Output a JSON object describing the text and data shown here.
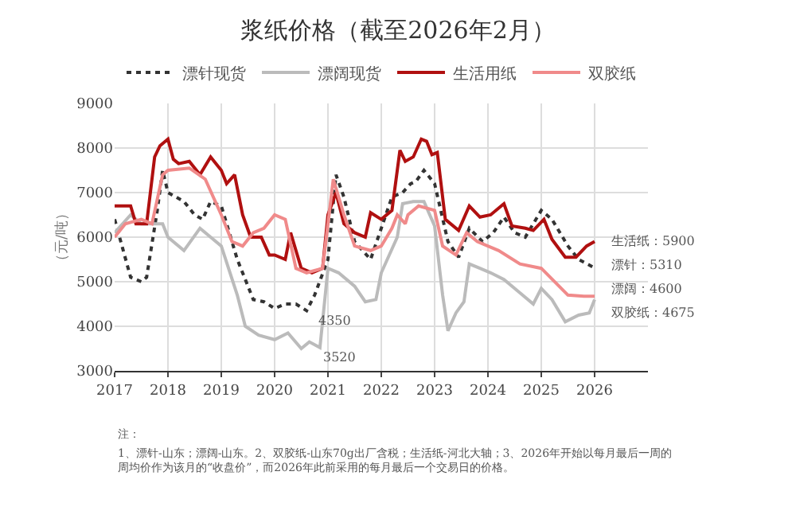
{
  "chart_data": {
    "type": "line",
    "title": "浆纸价格（截至2026年2月）",
    "ylabel": "（元/吨）",
    "xlim": [
      2017,
      2027
    ],
    "xticks": [
      2017,
      2018,
      2019,
      2020,
      2021,
      2022,
      2023,
      2024,
      2025,
      2026
    ],
    "ylim": [
      3000,
      9000
    ],
    "yticks": [
      3000,
      4000,
      5000,
      6000,
      7000,
      8000,
      9000
    ],
    "grid": true,
    "legend": "top",
    "marker": "none",
    "series": [
      {
        "name": "漂针现货",
        "color": "#333333",
        "line_style": "dotted",
        "x": [
          2017.0,
          2017.3,
          2017.5,
          2017.6,
          2017.8,
          2017.9,
          2018.0,
          2018.3,
          2018.5,
          2018.65,
          2018.8,
          2019.0,
          2019.3,
          2019.5,
          2019.6,
          2019.8,
          2020.0,
          2020.2,
          2020.4,
          2020.6,
          2020.75,
          2021.0,
          2021.15,
          2021.3,
          2021.5,
          2021.8,
          2022.0,
          2022.2,
          2022.4,
          2022.55,
          2022.65,
          2022.8,
          2023.0,
          2023.25,
          2023.45,
          2023.65,
          2023.9,
          2024.1,
          2024.3,
          2024.5,
          2024.7,
          2025.0,
          2025.2,
          2025.5,
          2025.7,
          2026.0
        ],
        "values": [
          6400,
          5100,
          5000,
          5100,
          6600,
          7500,
          7000,
          6800,
          6500,
          6400,
          6800,
          6700,
          5500,
          4900,
          4600,
          4550,
          4400,
          4500,
          4500,
          4350,
          4700,
          5500,
          7400,
          6900,
          5900,
          5500,
          6200,
          6900,
          7000,
          7200,
          7250,
          7500,
          7200,
          5900,
          5550,
          6200,
          5900,
          6100,
          6450,
          6100,
          6000,
          6600,
          6400,
          5800,
          5500,
          5310
        ]
      },
      {
        "name": "漂阔现货",
        "color": "#bbbbbb",
        "line_style": "solid",
        "x": [
          2017.0,
          2017.3,
          2017.5,
          2017.7,
          2017.9,
          2018.0,
          2018.3,
          2018.6,
          2018.8,
          2019.0,
          2019.3,
          2019.45,
          2019.7,
          2020.0,
          2020.25,
          2020.5,
          2020.65,
          2020.85,
          2021.0,
          2021.2,
          2021.5,
          2021.7,
          2021.9,
          2022.0,
          2022.3,
          2022.4,
          2022.6,
          2022.8,
          2023.0,
          2023.15,
          2023.25,
          2023.4,
          2023.55,
          2023.65,
          2023.85,
          2024.05,
          2024.3,
          2024.6,
          2024.85,
          2025.0,
          2025.2,
          2025.45,
          2025.7,
          2025.9,
          2026.0
        ],
        "values": [
          6100,
          6500,
          6300,
          6300,
          6300,
          6000,
          5700,
          6200,
          6000,
          5800,
          4700,
          4000,
          3800,
          3700,
          3850,
          3500,
          3650,
          3520,
          5300,
          5200,
          4900,
          4550,
          4600,
          5200,
          6000,
          6750,
          6800,
          6800,
          6250,
          4700,
          3900,
          4300,
          4550,
          5400,
          5300,
          5200,
          5050,
          4750,
          4500,
          4850,
          4600,
          4100,
          4250,
          4300,
          4600
        ]
      },
      {
        "name": "生活用纸",
        "color": "#b01010",
        "line_style": "solid",
        "x": [
          2017.0,
          2017.3,
          2017.4,
          2017.6,
          2017.75,
          2017.85,
          2018.0,
          2018.1,
          2018.2,
          2018.4,
          2018.6,
          2018.8,
          2019.0,
          2019.1,
          2019.25,
          2019.4,
          2019.55,
          2019.75,
          2019.9,
          2020.0,
          2020.2,
          2020.3,
          2020.5,
          2020.7,
          2020.9,
          2021.0,
          2021.15,
          2021.3,
          2021.5,
          2021.7,
          2021.8,
          2022.0,
          2022.2,
          2022.35,
          2022.45,
          2022.6,
          2022.75,
          2022.85,
          2022.95,
          2023.05,
          2023.2,
          2023.45,
          2023.65,
          2023.85,
          2024.05,
          2024.3,
          2024.45,
          2024.7,
          2024.85,
          2025.05,
          2025.2,
          2025.45,
          2025.65,
          2025.85,
          2026.0
        ],
        "values": [
          6700,
          6700,
          6300,
          6300,
          7800,
          8050,
          8200,
          7750,
          7650,
          7700,
          7400,
          7800,
          7500,
          7200,
          7400,
          6500,
          6000,
          6000,
          5600,
          5600,
          5500,
          6100,
          5300,
          5200,
          5300,
          6500,
          7000,
          6300,
          6100,
          6000,
          6550,
          6400,
          6600,
          7950,
          7700,
          7800,
          8200,
          8150,
          7850,
          7900,
          6400,
          6150,
          6700,
          6450,
          6500,
          6750,
          6250,
          6200,
          6150,
          6400,
          5950,
          5550,
          5550,
          5800,
          5900
        ]
      },
      {
        "name": "双胶纸",
        "color": "#f08a8a",
        "line_style": "solid",
        "x": [
          2017.0,
          2017.2,
          2017.5,
          2017.7,
          2017.9,
          2018.0,
          2018.4,
          2018.7,
          2019.0,
          2019.2,
          2019.4,
          2019.6,
          2019.8,
          2020.0,
          2020.2,
          2020.4,
          2020.6,
          2020.9,
          2021.1,
          2021.3,
          2021.5,
          2021.8,
          2022.0,
          2022.2,
          2022.3,
          2022.45,
          2022.5,
          2022.7,
          2023.0,
          2023.15,
          2023.4,
          2023.6,
          2023.8,
          2024.2,
          2024.6,
          2025.0,
          2025.5,
          2025.8,
          2026.0
        ],
        "values": [
          6000,
          6300,
          6400,
          6300,
          7400,
          7500,
          7550,
          7300,
          6500,
          5900,
          5800,
          6100,
          6200,
          6500,
          6400,
          5300,
          5200,
          5300,
          7300,
          6500,
          5800,
          5700,
          5800,
          6200,
          6500,
          6300,
          6500,
          6700,
          6600,
          5800,
          5600,
          6100,
          5900,
          5700,
          5400,
          5300,
          4700,
          4675,
          4675
        ]
      }
    ],
    "annotations": [
      {
        "text": "4350",
        "x": 2020.75,
        "y": 4350
      },
      {
        "text": "3520",
        "x": 2020.85,
        "y": 3520
      },
      {
        "text": "生活纸：5900",
        "x": 2026,
        "y": 5900
      },
      {
        "text": "漂针：5310",
        "x": 2026,
        "y": 5310
      },
      {
        "text": "漂阔：4600",
        "x": 2026,
        "y": 4600
      },
      {
        "text": "双胶纸：4675",
        "x": 2026,
        "y": 4675
      },
      "注：",
      "1、漂针-山东；漂阔-山东。2、双胶纸-山东70g出厂含税；生活纸-河北大轴；3、2026年开始以每月最后一周的周均价作为该月的“收盘价”，而2026年此前采用的每月最后一个交易日的价格。"
    ]
  }
}
